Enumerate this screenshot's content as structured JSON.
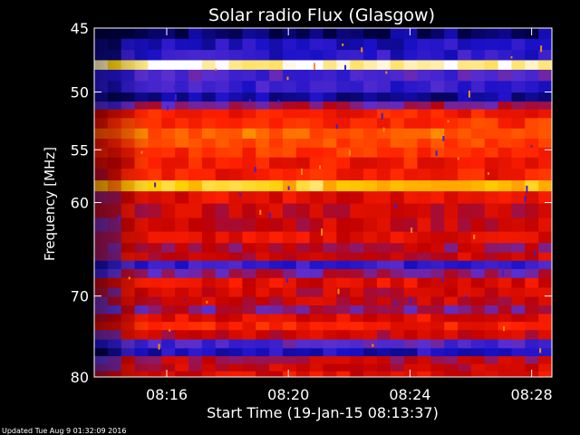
{
  "chart_data": {
    "type": "heatmap",
    "title": "Solar radio Flux (Glasgow)",
    "xlabel": "Start Time (19-Jan-15 08:13:37)",
    "ylabel": "Frequency [MHz]",
    "footer": "Updated Tue Aug  9 01:32:09 2016",
    "x_start": "08:13:37",
    "x_end": "08:28:40",
    "x_ticks": [
      "08:16",
      "08:20",
      "08:24",
      "08:28"
    ],
    "y_ticks": [
      45,
      50,
      55,
      60,
      70,
      80
    ],
    "y_scale": "log",
    "ylim": [
      45,
      80
    ],
    "colormap": [
      "#000040",
      "#1a10c8",
      "#5a2fd0",
      "#c00000",
      "#ff2000",
      "#ff6a00",
      "#ffd000",
      "#ffffff"
    ],
    "bands_freq_mhz": [
      {
        "f": 45.4,
        "level": 0.05
      },
      {
        "f": 46.2,
        "level": 0.15
      },
      {
        "f": 47.1,
        "level": 0.18
      },
      {
        "f": 47.8,
        "level": 0.98
      },
      {
        "f": 48.6,
        "level": 0.25
      },
      {
        "f": 49.6,
        "level": 0.2
      },
      {
        "f": 50.5,
        "level": 0.1
      },
      {
        "f": 51.1,
        "level": 0.35
      },
      {
        "f": 51.8,
        "level": 0.55
      },
      {
        "f": 52.6,
        "level": 0.6
      },
      {
        "f": 53.6,
        "level": 0.7
      },
      {
        "f": 54.4,
        "level": 0.65
      },
      {
        "f": 55.2,
        "level": 0.6
      },
      {
        "f": 56.2,
        "level": 0.55
      },
      {
        "f": 57.3,
        "level": 0.55
      },
      {
        "f": 58.4,
        "level": 0.85
      },
      {
        "f": 59.4,
        "level": 0.5
      },
      {
        "f": 60.8,
        "level": 0.45
      },
      {
        "f": 62.3,
        "level": 0.45
      },
      {
        "f": 63.6,
        "level": 0.5
      },
      {
        "f": 64.7,
        "level": 0.4
      },
      {
        "f": 65.6,
        "level": 0.45
      },
      {
        "f": 66.5,
        "level": 0.2
      },
      {
        "f": 67.4,
        "level": 0.35
      },
      {
        "f": 68.5,
        "level": 0.5
      },
      {
        "f": 69.6,
        "level": 0.45
      },
      {
        "f": 70.6,
        "level": 0.45
      },
      {
        "f": 71.6,
        "level": 0.35
      },
      {
        "f": 72.6,
        "level": 0.5
      },
      {
        "f": 73.5,
        "level": 0.55
      },
      {
        "f": 74.6,
        "level": 0.45
      },
      {
        "f": 75.8,
        "level": 0.25
      },
      {
        "f": 76.8,
        "level": 0.15
      },
      {
        "f": 77.8,
        "level": 0.42
      },
      {
        "f": 78.8,
        "level": 0.45
      },
      {
        "f": 79.7,
        "level": 0.5
      }
    ]
  }
}
